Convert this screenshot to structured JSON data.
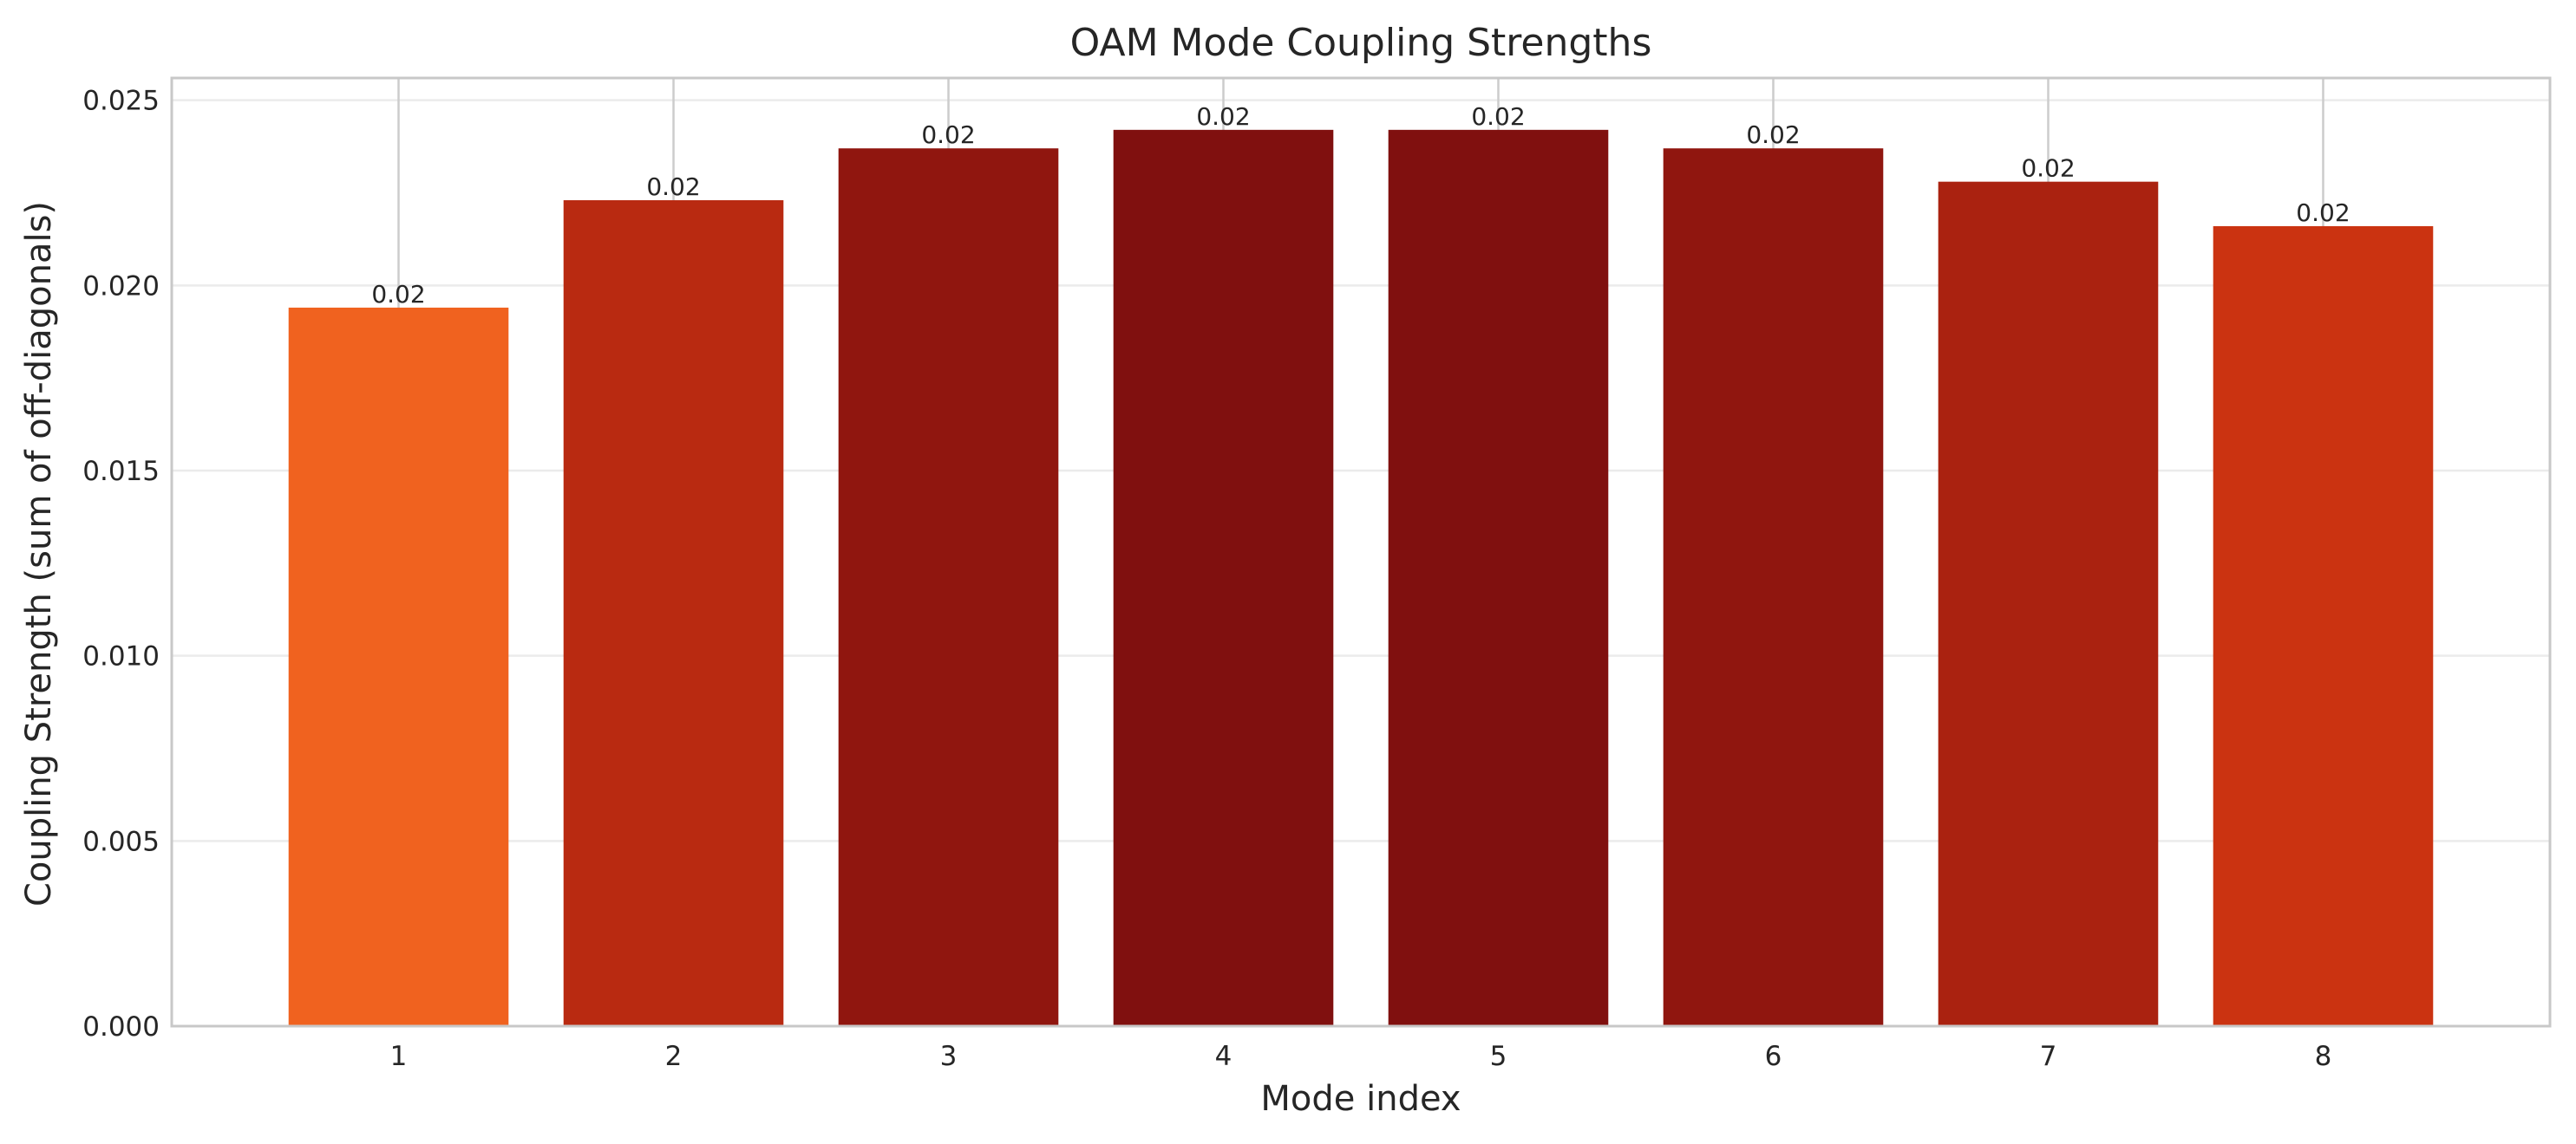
{
  "chart_data": {
    "type": "bar",
    "title": "OAM Mode Coupling Strengths",
    "xlabel": "Mode index",
    "ylabel": "Coupling Strength (sum of off-diagonals)",
    "categories": [
      "1",
      "2",
      "3",
      "4",
      "5",
      "6",
      "7",
      "8"
    ],
    "values": [
      0.0194,
      0.0223,
      0.0237,
      0.0242,
      0.0242,
      0.0237,
      0.0228,
      0.0216
    ],
    "data_labels": [
      "0.02",
      "0.02",
      "0.02",
      "0.02",
      "0.02",
      "0.02",
      "0.02",
      "0.02"
    ],
    "bar_colors": [
      "#f0621f",
      "#b92a11",
      "#90160f",
      "#80100f",
      "#80100f",
      "#90160f",
      "#aa2210",
      "#cb3311"
    ],
    "ylim": [
      0,
      0.0256
    ],
    "y_ticks": [
      0,
      0.005,
      0.01,
      0.015,
      0.02,
      0.025
    ],
    "y_tick_labels": [
      "0.000",
      "0.005",
      "0.010",
      "0.015",
      "0.020",
      "0.025"
    ],
    "grid": true,
    "legend": "none"
  }
}
